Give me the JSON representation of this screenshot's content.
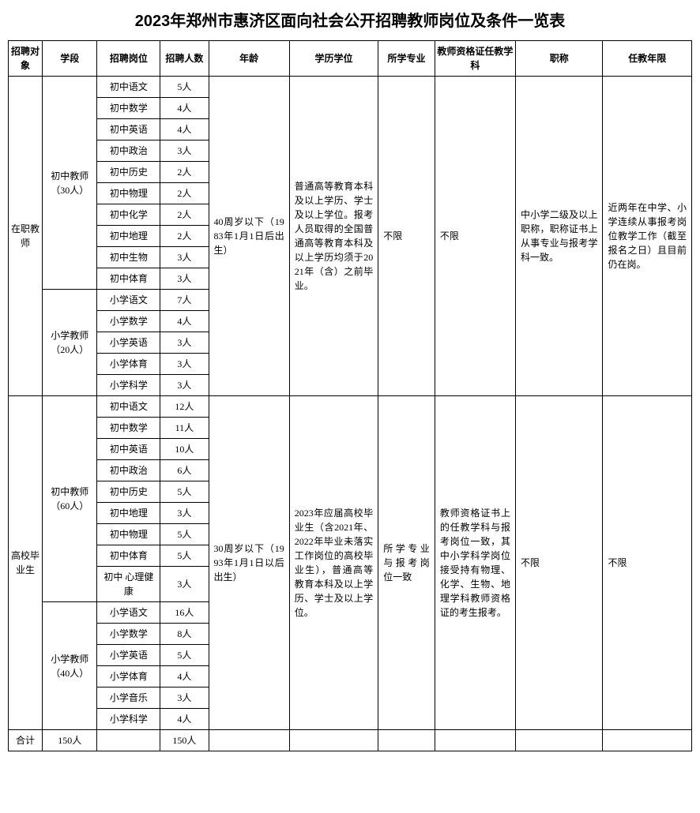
{
  "title": "2023年郑州市惠济区面向社会公开招聘教师岗位及条件一览表",
  "headers": {
    "target": "招聘对象",
    "stage": "学段",
    "position": "招聘岗位",
    "count": "招聘人数",
    "age": "年龄",
    "education": "学历学位",
    "major": "所学专业",
    "cert": "教师资格证任教学科",
    "jobTitle": "职称",
    "years": "任教年限"
  },
  "group1": {
    "target": "在职教师",
    "stage1": "初中教师（30人）",
    "stage2": "小学教师（20人）",
    "age": "40周岁以下（1983年1月1日后出生）",
    "education": "普通高等教育本科及以上学历、学士及以上学位。报考人员取得的全国普通高等教育本科及以上学历均须于2021年（含）之前毕业。",
    "major": "不限",
    "cert": "不限",
    "jobTitle": "中小学二级及以上职称，职称证书上从事专业与报考学科一致。",
    "years": "近两年在中学、小学连续从事报考岗位教学工作（截至报名之日）且目前仍在岗。",
    "rows1": [
      {
        "pos": "初中语文",
        "cnt": "5人"
      },
      {
        "pos": "初中数学",
        "cnt": "4人"
      },
      {
        "pos": "初中英语",
        "cnt": "4人"
      },
      {
        "pos": "初中政治",
        "cnt": "3人"
      },
      {
        "pos": "初中历史",
        "cnt": "2人"
      },
      {
        "pos": "初中物理",
        "cnt": "2人"
      },
      {
        "pos": "初中化学",
        "cnt": "2人"
      },
      {
        "pos": "初中地理",
        "cnt": "2人"
      },
      {
        "pos": "初中生物",
        "cnt": "3人"
      },
      {
        "pos": "初中体育",
        "cnt": "3人"
      }
    ],
    "rows2": [
      {
        "pos": "小学语文",
        "cnt": "7人"
      },
      {
        "pos": "小学数学",
        "cnt": "4人"
      },
      {
        "pos": "小学英语",
        "cnt": "3人"
      },
      {
        "pos": "小学体育",
        "cnt": "3人"
      },
      {
        "pos": "小学科学",
        "cnt": "3人"
      }
    ]
  },
  "group2": {
    "target": "高校毕业生",
    "stage1": "初中教师（60人）",
    "stage2": "小学教师（40人）",
    "age": "30周岁以下（1993年1月1日以后出生）",
    "education": "2023年应届高校毕业生（含2021年、2022年毕业未落实工作岗位的高校毕业生），普通高等教育本科及以上学历、学士及以上学位。",
    "major": "所学专业与报考岗位一致",
    "cert": "教师资格证书上的任教学科与报考岗位一致，其中小学科学岗位接受持有物理、化学、生物、地理学科教师资格证的考生报考。",
    "jobTitle": "不限",
    "years": "不限",
    "rows1": [
      {
        "pos": "初中语文",
        "cnt": "12人"
      },
      {
        "pos": "初中数学",
        "cnt": "11人"
      },
      {
        "pos": "初中英语",
        "cnt": "10人"
      },
      {
        "pos": "初中政治",
        "cnt": "6人"
      },
      {
        "pos": "初中历史",
        "cnt": "5人"
      },
      {
        "pos": "初中地理",
        "cnt": "3人"
      },
      {
        "pos": "初中物理",
        "cnt": "5人"
      },
      {
        "pos": "初中体育",
        "cnt": "5人"
      },
      {
        "pos": "初中\n心理健康",
        "cnt": "3人"
      }
    ],
    "rows2": [
      {
        "pos": "小学语文",
        "cnt": "16人"
      },
      {
        "pos": "小学数学",
        "cnt": "8人"
      },
      {
        "pos": "小学英语",
        "cnt": "5人"
      },
      {
        "pos": "小学体育",
        "cnt": "4人"
      },
      {
        "pos": "小学音乐",
        "cnt": "3人"
      },
      {
        "pos": "小学科学",
        "cnt": "4人"
      }
    ]
  },
  "total": {
    "label": "合计",
    "stageTotal": "150人",
    "countTotal": "150人"
  }
}
